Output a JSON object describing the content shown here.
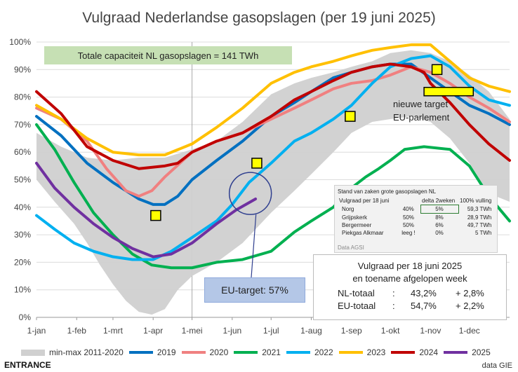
{
  "title": "Vulgraad Nederlandse gasopslagen (per 19 juni 2025)",
  "capacity_note": "Totale capaciteit NL gasopslagen = 141 TWh",
  "eu_target_label": "EU-target: 57%",
  "new_target_note": [
    "nieuwe target",
    "EU-parlement"
  ],
  "stand_table": {
    "title": "Stand van zaken grote gasopslagen NL",
    "header": [
      "Vulgraad per 18 juni",
      "",
      "delta 2weken",
      "100% vulling"
    ],
    "rows": [
      {
        "name": "Norg",
        "fill": "40%",
        "delta": "5%",
        "full": "59,3 TWh"
      },
      {
        "name": "Grijpskerk",
        "fill": "50%",
        "delta": "8%",
        "full": "28,9 TWh"
      },
      {
        "name": "Bergermeer",
        "fill": "50%",
        "delta": "6%",
        "full": "49,7 TWh"
      },
      {
        "name": "Piekgas Alkmaar",
        "fill": "leeg !",
        "delta": "0%",
        "full": "5 TWh"
      }
    ],
    "source": "Data AGSI"
  },
  "nl_summary": {
    "line1": "Vulgraad per 18 juni 2025",
    "line2": "en toename afgelopen week",
    "rows": [
      {
        "label": "NL-totaal",
        "sep": ":",
        "value": "43,2%",
        "change": "+ 2,8%"
      },
      {
        "label": "EU-totaal",
        "sep": ":",
        "value": "54,7%",
        "change": "+ 2,2%"
      }
    ]
  },
  "footer": {
    "brand": "ENTRANCE",
    "source": "data GIE"
  },
  "chart_data": {
    "type": "line",
    "title": "Vulgraad Nederlandse gasopslagen (per 19 juni 2025)",
    "x_unit": "day of year",
    "x_ticks": [
      {
        "label": "1-jan",
        "day": 1
      },
      {
        "label": "1-feb",
        "day": 32
      },
      {
        "label": "1-mrt",
        "day": 60
      },
      {
        "label": "1-apr",
        "day": 91
      },
      {
        "label": "1-mei",
        "day": 121
      },
      {
        "label": "1-jun",
        "day": 152
      },
      {
        "label": "1-jul",
        "day": 182
      },
      {
        "label": "1-aug",
        "day": 213
      },
      {
        "label": "1-sep",
        "day": 244
      },
      {
        "label": "1-okt",
        "day": 274
      },
      {
        "label": "1-nov",
        "day": 305
      },
      {
        "label": "1-dec",
        "day": 335
      }
    ],
    "xlim": [
      1,
      366
    ],
    "y_ticks": [
      "0%",
      "10%",
      "20%",
      "30%",
      "40%",
      "50%",
      "60%",
      "70%",
      "80%",
      "90%",
      "100%"
    ],
    "ylim": [
      0,
      100
    ],
    "grid": "horizontal",
    "legend_position": "bottom",
    "band": {
      "name": "min-max 2011-2020",
      "color": "#d0d0d0",
      "upper": [
        [
          1,
          67
        ],
        [
          20,
          62
        ],
        [
          40,
          58
        ],
        [
          60,
          57
        ],
        [
          80,
          58
        ],
        [
          100,
          58
        ],
        [
          121,
          61
        ],
        [
          140,
          64
        ],
        [
          160,
          71
        ],
        [
          182,
          81
        ],
        [
          200,
          85
        ],
        [
          213,
          87
        ],
        [
          230,
          89
        ],
        [
          244,
          91
        ],
        [
          260,
          93
        ],
        [
          274,
          96
        ],
        [
          290,
          97
        ],
        [
          305,
          96
        ],
        [
          320,
          93
        ],
        [
          335,
          88
        ],
        [
          350,
          82
        ],
        [
          366,
          72
        ]
      ],
      "lower": [
        [
          1,
          50
        ],
        [
          15,
          42
        ],
        [
          30,
          34
        ],
        [
          40,
          27
        ],
        [
          50,
          19
        ],
        [
          60,
          12
        ],
        [
          70,
          6
        ],
        [
          80,
          2
        ],
        [
          90,
          1
        ],
        [
          100,
          3
        ],
        [
          110,
          10
        ],
        [
          121,
          15
        ],
        [
          140,
          20
        ],
        [
          160,
          27
        ],
        [
          182,
          38
        ],
        [
          200,
          46
        ],
        [
          213,
          52
        ],
        [
          230,
          60
        ],
        [
          244,
          67
        ],
        [
          260,
          71
        ],
        [
          274,
          72
        ],
        [
          290,
          73
        ],
        [
          305,
          71
        ],
        [
          320,
          65
        ],
        [
          335,
          56
        ],
        [
          350,
          45
        ],
        [
          366,
          42
        ]
      ]
    },
    "series": [
      {
        "name": "2019",
        "color": "#0070c0",
        "points": [
          [
            1,
            73
          ],
          [
            20,
            66
          ],
          [
            40,
            56
          ],
          [
            60,
            49
          ],
          [
            80,
            43
          ],
          [
            91,
            41
          ],
          [
            100,
            41
          ],
          [
            110,
            44
          ],
          [
            121,
            50
          ],
          [
            140,
            57
          ],
          [
            160,
            64
          ],
          [
            182,
            73
          ],
          [
            200,
            78
          ],
          [
            213,
            82
          ],
          [
            230,
            87
          ],
          [
            244,
            89
          ],
          [
            260,
            91
          ],
          [
            274,
            92
          ],
          [
            290,
            92
          ],
          [
            305,
            87
          ],
          [
            320,
            82
          ],
          [
            335,
            77
          ],
          [
            350,
            74
          ],
          [
            366,
            70
          ]
        ]
      },
      {
        "name": "2020",
        "color": "#f08080",
        "points": [
          [
            1,
            76
          ],
          [
            20,
            72
          ],
          [
            40,
            64
          ],
          [
            55,
            54
          ],
          [
            70,
            46
          ],
          [
            80,
            44
          ],
          [
            90,
            46
          ],
          [
            100,
            51
          ],
          [
            121,
            60
          ],
          [
            140,
            64
          ],
          [
            160,
            67
          ],
          [
            182,
            72
          ],
          [
            200,
            76
          ],
          [
            213,
            79
          ],
          [
            230,
            83
          ],
          [
            244,
            85
          ],
          [
            260,
            86
          ],
          [
            274,
            88
          ],
          [
            290,
            91
          ],
          [
            305,
            89
          ],
          [
            320,
            85
          ],
          [
            335,
            80
          ],
          [
            350,
            76
          ],
          [
            366,
            71
          ]
        ]
      },
      {
        "name": "2021",
        "color": "#00b050",
        "points": [
          [
            1,
            70
          ],
          [
            15,
            61
          ],
          [
            30,
            49
          ],
          [
            45,
            38
          ],
          [
            60,
            30
          ],
          [
            75,
            23
          ],
          [
            90,
            19
          ],
          [
            105,
            18
          ],
          [
            121,
            18
          ],
          [
            140,
            20
          ],
          [
            160,
            21
          ],
          [
            182,
            24
          ],
          [
            200,
            31
          ],
          [
            213,
            35
          ],
          [
            230,
            40
          ],
          [
            244,
            47
          ],
          [
            255,
            51
          ],
          [
            265,
            54
          ],
          [
            274,
            57
          ],
          [
            285,
            61
          ],
          [
            300,
            62
          ],
          [
            320,
            61
          ],
          [
            335,
            55
          ],
          [
            350,
            44
          ],
          [
            366,
            35
          ]
        ]
      },
      {
        "name": "2022",
        "color": "#00b0f0",
        "points": [
          [
            1,
            37
          ],
          [
            15,
            32
          ],
          [
            30,
            27
          ],
          [
            45,
            24
          ],
          [
            60,
            22
          ],
          [
            75,
            21
          ],
          [
            91,
            21
          ],
          [
            105,
            24
          ],
          [
            121,
            29
          ],
          [
            140,
            35
          ],
          [
            152,
            41
          ],
          [
            165,
            49
          ],
          [
            182,
            56
          ],
          [
            200,
            64
          ],
          [
            213,
            67
          ],
          [
            230,
            72
          ],
          [
            244,
            77
          ],
          [
            260,
            85
          ],
          [
            274,
            91
          ],
          [
            290,
            94
          ],
          [
            305,
            95
          ],
          [
            320,
            91
          ],
          [
            335,
            84
          ],
          [
            350,
            79
          ],
          [
            366,
            77
          ]
        ]
      },
      {
        "name": "2023",
        "color": "#ffc000",
        "points": [
          [
            1,
            77
          ],
          [
            20,
            72
          ],
          [
            40,
            65
          ],
          [
            60,
            60
          ],
          [
            80,
            59
          ],
          [
            100,
            59
          ],
          [
            121,
            63
          ],
          [
            140,
            69
          ],
          [
            160,
            76
          ],
          [
            182,
            85
          ],
          [
            200,
            89
          ],
          [
            213,
            91
          ],
          [
            230,
            93
          ],
          [
            244,
            95
          ],
          [
            260,
            97
          ],
          [
            274,
            98
          ],
          [
            290,
            99
          ],
          [
            305,
            99
          ],
          [
            320,
            93
          ],
          [
            335,
            87
          ],
          [
            350,
            84
          ],
          [
            366,
            82
          ]
        ]
      },
      {
        "name": "2024",
        "color": "#c00000",
        "points": [
          [
            1,
            82
          ],
          [
            20,
            74
          ],
          [
            40,
            62
          ],
          [
            60,
            57
          ],
          [
            80,
            54
          ],
          [
            100,
            55
          ],
          [
            110,
            56
          ],
          [
            121,
            60
          ],
          [
            140,
            64
          ],
          [
            160,
            67
          ],
          [
            182,
            73
          ],
          [
            200,
            79
          ],
          [
            213,
            82
          ],
          [
            230,
            86
          ],
          [
            244,
            89
          ],
          [
            260,
            91
          ],
          [
            274,
            92
          ],
          [
            290,
            91
          ],
          [
            300,
            89
          ],
          [
            305,
            85
          ],
          [
            320,
            78
          ],
          [
            335,
            70
          ],
          [
            350,
            63
          ],
          [
            366,
            57
          ]
        ]
      },
      {
        "name": "2025",
        "color": "#7030a0",
        "points": [
          [
            1,
            56
          ],
          [
            15,
            47
          ],
          [
            30,
            40
          ],
          [
            45,
            34
          ],
          [
            60,
            29
          ],
          [
            75,
            25
          ],
          [
            91,
            22
          ],
          [
            105,
            23
          ],
          [
            121,
            27
          ],
          [
            140,
            34
          ],
          [
            155,
            39
          ],
          [
            170,
            43
          ]
        ]
      }
    ],
    "targets": [
      {
        "x": 93,
        "y": 37,
        "kind": "point"
      },
      {
        "x": 171,
        "y": 56,
        "kind": "point"
      },
      {
        "x": 243,
        "y": 73,
        "kind": "point"
      },
      {
        "x": 310,
        "y": 90,
        "kind": "point"
      },
      {
        "x": 300,
        "x_end": 338,
        "y": 82,
        "kind": "bar"
      }
    ],
    "eu_target": {
      "x": 166,
      "y": 45
    },
    "marker_color": "#ffff00"
  }
}
